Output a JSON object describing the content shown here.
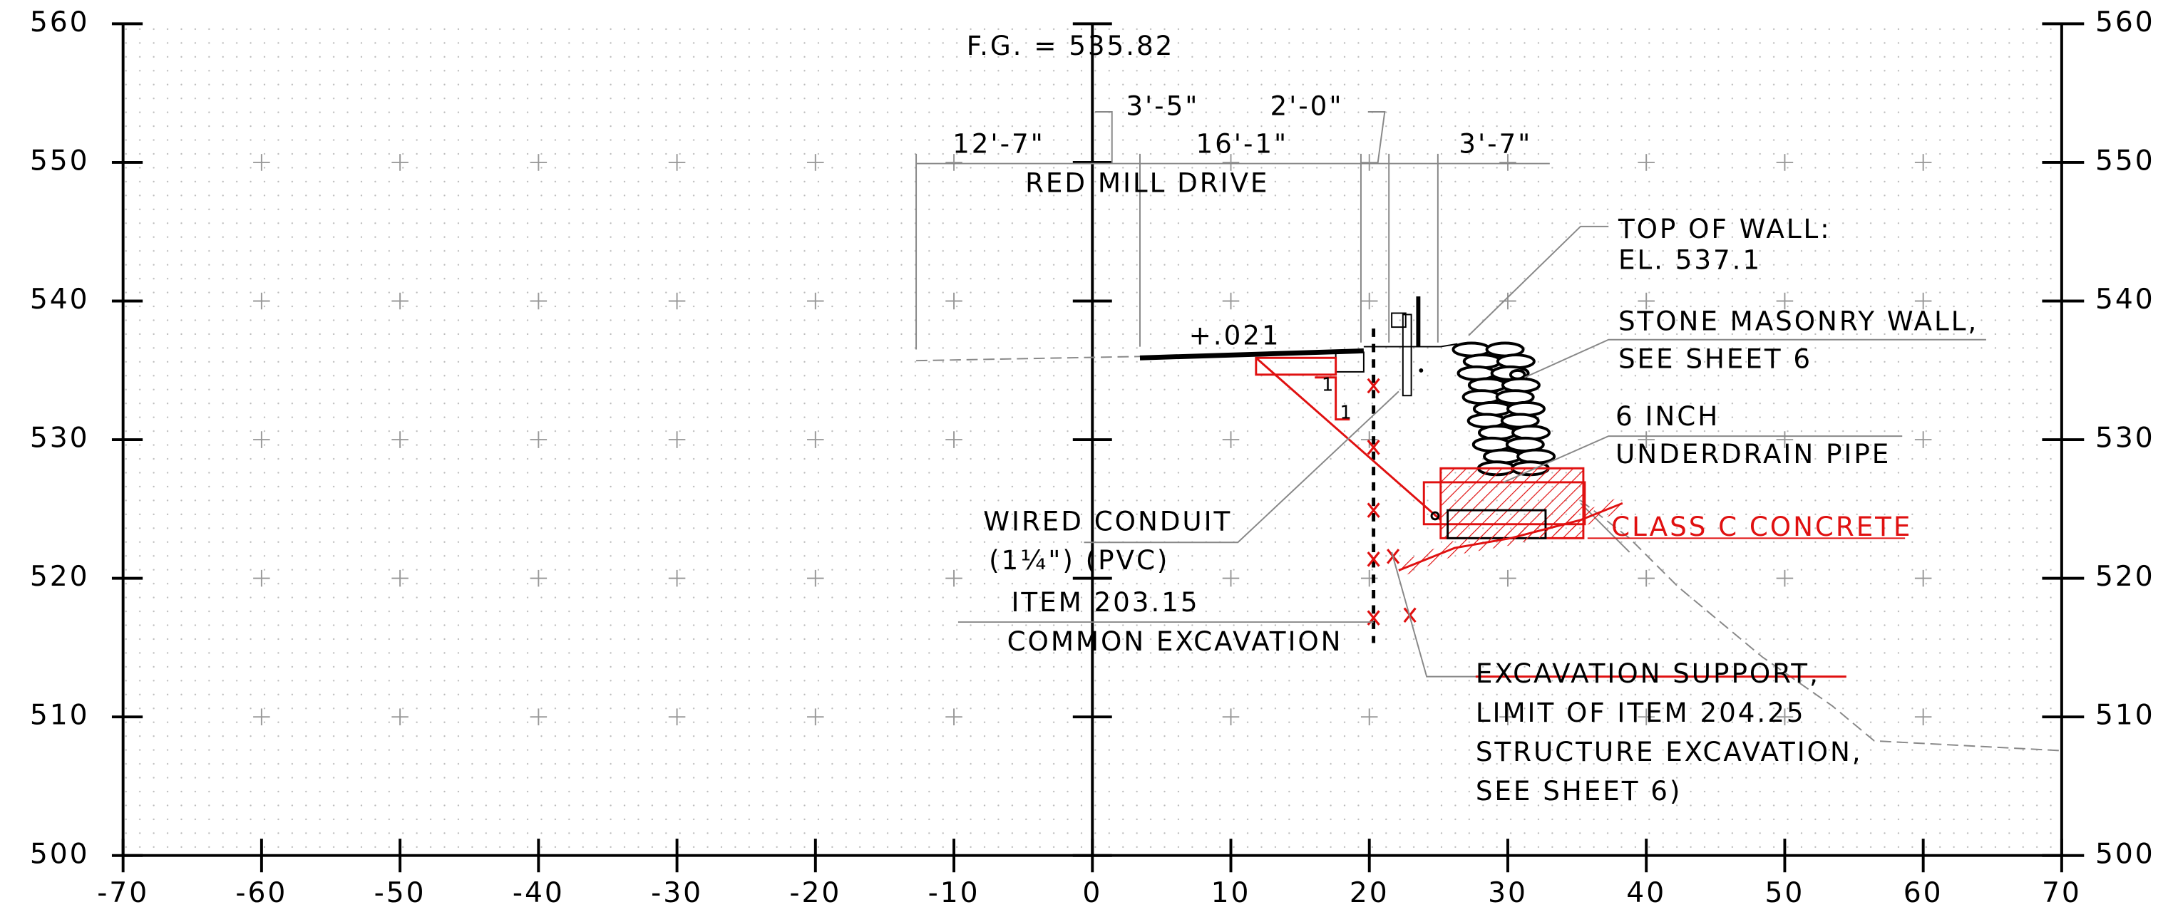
{
  "axes": {
    "left": [
      560,
      550,
      540,
      530,
      520,
      510,
      500
    ],
    "right": [
      560,
      550,
      540,
      530,
      520,
      510,
      500
    ],
    "bottom": [
      -70,
      -60,
      -50,
      -40,
      -30,
      -20,
      -10,
      0,
      10,
      20,
      30,
      40,
      50,
      60,
      70
    ]
  },
  "labels": {
    "fg": "F.G.  = 535.82",
    "dim_a": "3'-5\"",
    "dim_b": "2'-0\"",
    "dim_c": "12'-7\"",
    "dim_d": "16'-1\"",
    "dim_e": "3'-7\"",
    "road": "RED MILL DRIVE",
    "slope": "+.021",
    "slope_one_a": "1",
    "slope_one_b": "1",
    "top_wall_1": "TOP OF WALL:",
    "top_wall_2": "EL. 537.1",
    "wall_1": "STONE MASONRY WALL,",
    "wall_2": "SEE SHEET 6",
    "pipe_1": "6 INCH",
    "pipe_2": "UNDERDRAIN PIPE",
    "concrete": "CLASS C CONCRETE",
    "conduit_1": "WIRED CONDUIT",
    "conduit_2": "(1¼\")  (PVC)",
    "item_1": "ITEM 203.15",
    "item_2": "COMMON EXCAVATION",
    "support_1": "EXCAVATION SUPPORT,",
    "support_2": "LIMIT OF ITEM 204.25",
    "support_3": "STRUCTURE EXCAVATION,",
    "support_4": "SEE SHEET 6)"
  }
}
